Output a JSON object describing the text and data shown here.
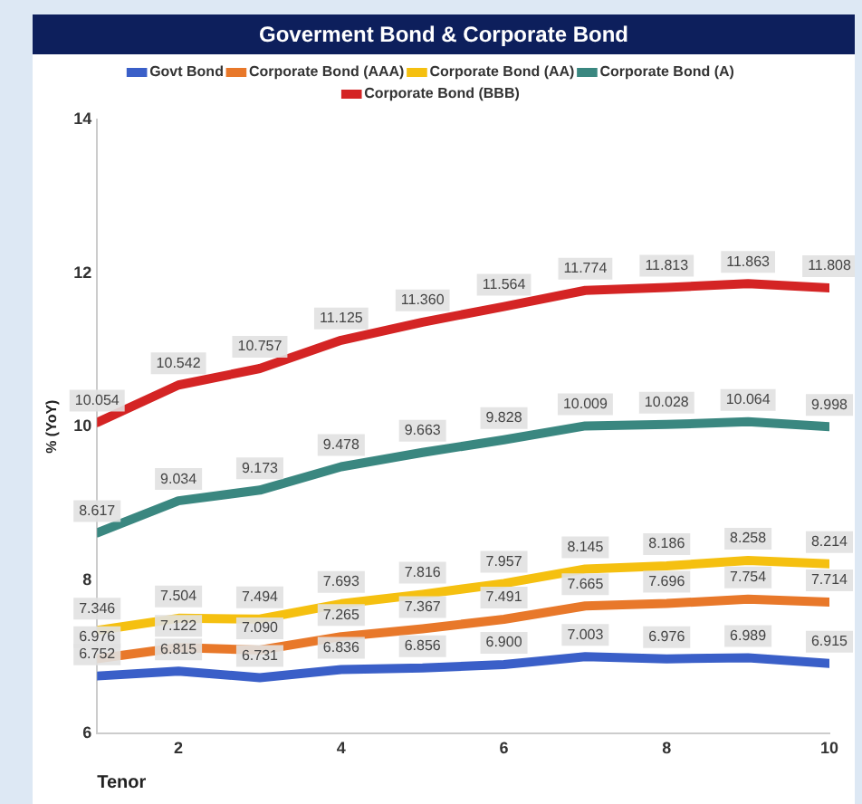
{
  "chart_data": {
    "type": "line",
    "title": "Goverment Bond & Corporate Bond",
    "xlabel": "Tenor",
    "ylabel": "% (YoY)",
    "x": [
      1,
      2,
      3,
      4,
      5,
      6,
      7,
      8,
      9,
      10
    ],
    "xlim": [
      1,
      10
    ],
    "xticks": [
      2,
      4,
      6,
      8,
      10
    ],
    "ylim": [
      6,
      14
    ],
    "yticks": [
      6,
      8,
      10,
      12,
      14
    ],
    "grid": false,
    "legend": "top",
    "marker": "none",
    "line_style": "solid",
    "series": [
      {
        "name": "Govt Bond",
        "color": "#3a5fc8",
        "values": [
          6.752,
          6.815,
          6.731,
          6.836,
          6.856,
          6.9,
          7.003,
          6.976,
          6.989,
          6.915
        ],
        "value_labels": [
          "6.752",
          "6.815",
          "6.731",
          "6.836",
          "6.856",
          "6.900",
          "7.003",
          "6.976",
          "6.989",
          "6.915"
        ]
      },
      {
        "name": "Corporate Bond (AAA)",
        "color": "#e8782a",
        "values": [
          6.976,
          7.122,
          7.09,
          7.265,
          7.367,
          7.491,
          7.665,
          7.696,
          7.754,
          7.714
        ],
        "value_labels": [
          "6.976",
          "7.122",
          "7.090",
          "7.265",
          "7.367",
          "7.491",
          "7.665",
          "7.696",
          "7.754",
          "7.714"
        ]
      },
      {
        "name": "Corporate Bond (AA)",
        "color": "#f5c010",
        "values": [
          7.346,
          7.504,
          7.494,
          7.693,
          7.816,
          7.957,
          8.145,
          8.186,
          8.258,
          8.214
        ],
        "value_labels": [
          "7.346",
          "7.504",
          "7.494",
          "7.693",
          "7.816",
          "7.957",
          "8.145",
          "8.186",
          "8.258",
          "8.214"
        ]
      },
      {
        "name": "Corporate Bond (A)",
        "color": "#3a8780",
        "values": [
          8.617,
          9.034,
          9.173,
          9.478,
          9.663,
          9.828,
          10.009,
          10.028,
          10.064,
          9.998
        ],
        "value_labels": [
          "8.617",
          "9.034",
          "9.173",
          "9.478",
          "9.663",
          "9.828",
          "10.009",
          "10.028",
          "10.064",
          "9.998"
        ]
      },
      {
        "name": "Corporate Bond (BBB)",
        "color": "#d42424",
        "values": [
          10.054,
          10.542,
          10.757,
          11.125,
          11.36,
          11.564,
          11.774,
          11.813,
          11.863,
          11.808
        ],
        "value_labels": [
          "10.054",
          "10.542",
          "10.757",
          "11.125",
          "11.360",
          "11.564",
          "11.774",
          "11.813",
          "11.863",
          "11.808"
        ]
      }
    ]
  }
}
